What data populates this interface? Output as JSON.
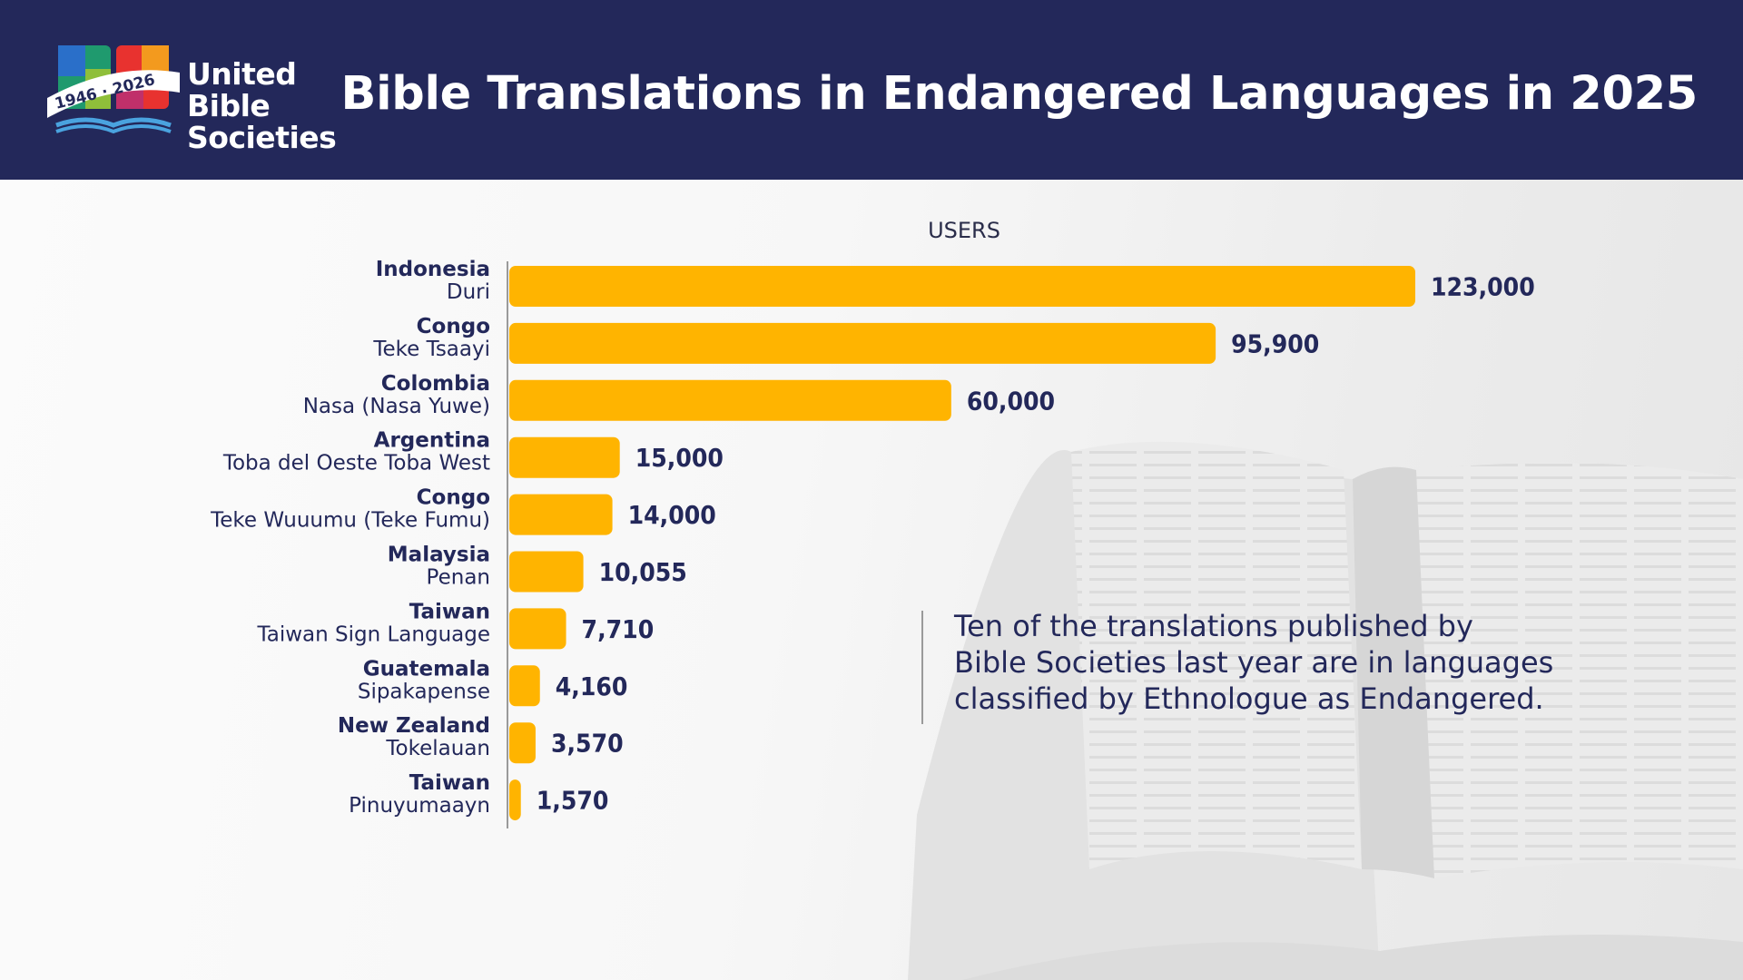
{
  "header": {
    "logo_line1": "United Bible",
    "logo_line2": "Societies",
    "logo_ribbon": "1946 · 2026",
    "title": "Bible Translations in Endangered Languages in 2025"
  },
  "colors": {
    "header_bg": "#23285a",
    "bar": "#ffb400",
    "text_dark": "#23285a"
  },
  "chart_data": {
    "type": "bar",
    "orientation": "horizontal",
    "axis_title": "USERS",
    "categories": [
      {
        "country": "Indonesia",
        "language": "Duri"
      },
      {
        "country": "Congo",
        "language": "Teke Tsaayi"
      },
      {
        "country": "Colombia",
        "language": "Nasa (Nasa Yuwe)"
      },
      {
        "country": "Argentina",
        "language": "Toba del Oeste Toba West"
      },
      {
        "country": "Congo",
        "language": "Teke Wuuumu (Teke Fumu)"
      },
      {
        "country": "Malaysia",
        "language": "Penan"
      },
      {
        "country": "Taiwan",
        "language": "Taiwan Sign Language"
      },
      {
        "country": "Guatemala",
        "language": "Sipakapense"
      },
      {
        "country": "New Zealand",
        "language": "Tokelauan"
      },
      {
        "country": "Taiwan",
        "language": "Pinuyumaayn"
      }
    ],
    "values": [
      123000,
      95900,
      60000,
      15000,
      14000,
      10055,
      7710,
      4160,
      3570,
      1570
    ],
    "value_labels": [
      "123,000",
      "95,900",
      "60,000",
      "15,000",
      "14,000",
      "10,055",
      "7,710",
      "4,160",
      "3,570",
      "1,570"
    ],
    "xlim": [
      0,
      123000
    ],
    "grid": false,
    "legend": "none"
  },
  "note": {
    "line1": "Ten of the translations published by",
    "line2": "Bible Societies last year are in languages",
    "line3": "classified by Ethnologue as Endangered."
  }
}
